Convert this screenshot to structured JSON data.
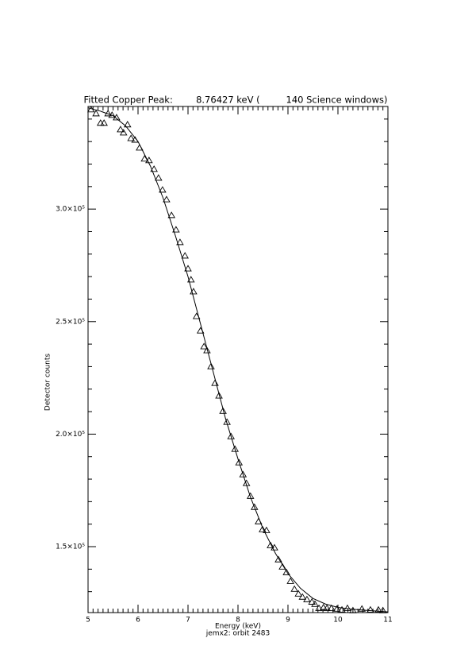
{
  "chart_data": {
    "type": "scatter",
    "title": "Fitted Copper Peak:        8.76427 keV (         140 Science windows)",
    "x_label": "Energy (keV)",
    "subtitle": "jemx2: orbit 2483",
    "y_label": "Detector counts",
    "color": "#000000",
    "xlim": [
      5,
      11
    ],
    "xticks": [
      5,
      6,
      7,
      8,
      9,
      10,
      11
    ],
    "ylim": [
      120700,
      345600
    ],
    "yticks": [
      {
        "value": 150000,
        "label": "1.5×10⁵"
      },
      {
        "value": 200000,
        "label": "2.0×10⁵"
      },
      {
        "value": 250000,
        "label": "2.5×10⁵"
      },
      {
        "value": 300000,
        "label": "3.0×10⁵"
      }
    ],
    "minor_per_major_x": 10,
    "minor_per_major_y": 5,
    "series": [
      {
        "type": "scatter",
        "marker": "triangle",
        "x": [
          5.06,
          5.16,
          5.25,
          5.32,
          5.4,
          5.48,
          5.57,
          5.65,
          5.71,
          5.79,
          5.86,
          5.94,
          6.03,
          6.13,
          6.22,
          6.32,
          6.41,
          6.49,
          6.57,
          6.67,
          6.76,
          6.84,
          6.94,
          7.0,
          7.06,
          7.11,
          7.17,
          7.25,
          7.32,
          7.38,
          7.46,
          7.54,
          7.62,
          7.7,
          7.78,
          7.86,
          7.94,
          8.02,
          8.1,
          8.17,
          8.25,
          8.33,
          8.41,
          8.49,
          8.57,
          8.65,
          8.73,
          8.81,
          8.89,
          8.97,
          9.05,
          9.13,
          9.21,
          9.29,
          9.38,
          9.48,
          9.54,
          9.62,
          9.71,
          9.78,
          9.87,
          9.98,
          10.08,
          10.19,
          10.3,
          10.48,
          10.65,
          10.81,
          10.9
        ],
        "values": [
          344200,
          342400,
          338200,
          338200,
          342400,
          341700,
          340600,
          335300,
          333900,
          337500,
          331400,
          330700,
          327200,
          322300,
          321600,
          317700,
          313800,
          308500,
          304200,
          297200,
          290800,
          285200,
          279200,
          273500,
          268600,
          263300,
          252300,
          245900,
          238900,
          237100,
          230000,
          222600,
          217000,
          210200,
          205300,
          198900,
          193300,
          187300,
          182000,
          178100,
          172400,
          167500,
          161100,
          157600,
          157200,
          150500,
          149500,
          144200,
          141000,
          138500,
          134600,
          131100,
          129000,
          127600,
          126500,
          125400,
          124400,
          122600,
          122900,
          122600,
          122600,
          122300,
          121900,
          122600,
          121600,
          122300,
          121900,
          121900,
          121600
        ]
      },
      {
        "type": "line",
        "x": [
          5.0,
          5.25,
          5.5,
          5.75,
          6.0,
          6.25,
          6.5,
          6.75,
          7.0,
          7.25,
          7.5,
          7.75,
          8.0,
          8.25,
          8.5,
          8.75,
          9.0,
          9.25,
          9.5,
          9.75,
          10.0,
          10.25,
          10.5,
          10.75,
          11.0
        ],
        "values": [
          345000,
          343500,
          341500,
          337000,
          330000,
          319000,
          305000,
          288000,
          270000,
          249000,
          228000,
          207000,
          189000,
          172000,
          158000,
          147000,
          138000,
          131500,
          127000,
          124500,
          123000,
          122300,
          121800,
          121400,
          121000
        ]
      }
    ]
  }
}
